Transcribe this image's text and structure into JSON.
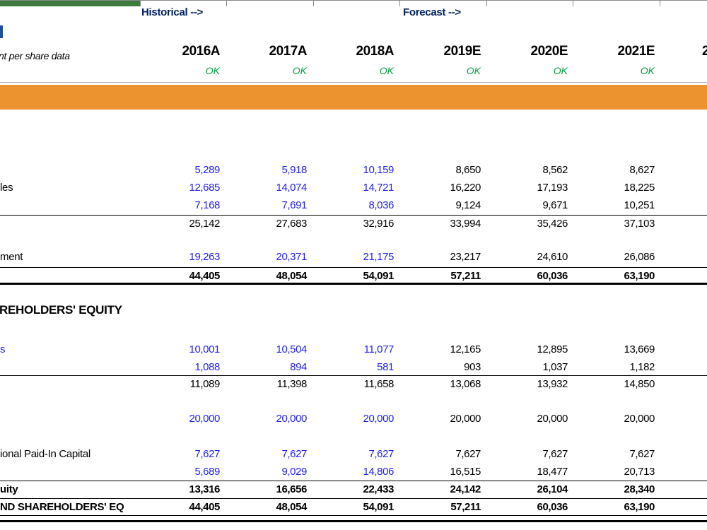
{
  "header": {
    "historical_label": "Historical -->",
    "forecast_label": "Forecast -->",
    "subtitle_fragment": "nt per share data",
    "years": [
      "2016A",
      "2017A",
      "2018A",
      "2019E",
      "2020E",
      "2021E"
    ],
    "next_year_fragment": "2",
    "check_label": "OK"
  },
  "section_header_fragment": "REHOLDERS' EQUITY",
  "table": {
    "rows": [
      {
        "label": "",
        "label_style": "normal",
        "value_style": "input",
        "values": [
          "5,289",
          "5,918",
          "10,159",
          "8,650",
          "8,562",
          "8,627"
        ]
      },
      {
        "label": "les",
        "label_style": "normal",
        "value_style": "input",
        "values": [
          "12,685",
          "14,074",
          "14,721",
          "16,220",
          "17,193",
          "18,225"
        ]
      },
      {
        "label": "",
        "label_style": "normal",
        "value_style": "input",
        "values": [
          "7,168",
          "7,691",
          "8,036",
          "9,124",
          "9,671",
          "10,251"
        ]
      },
      {
        "label": "",
        "label_style": "normal",
        "value_style": "calc",
        "values": [
          "25,142",
          "27,683",
          "32,916",
          "33,994",
          "35,426",
          "37,103"
        ]
      },
      {
        "label": "ment",
        "label_style": "normal",
        "value_style": "input",
        "values": [
          "19,263",
          "20,371",
          "21,175",
          "23,217",
          "24,610",
          "26,086"
        ]
      },
      {
        "label": "",
        "label_style": "normal",
        "value_style": "total",
        "values": [
          "44,405",
          "48,054",
          "54,091",
          "57,211",
          "60,036",
          "63,190"
        ]
      },
      {
        "label": "s",
        "label_style": "blue",
        "value_style": "input",
        "values": [
          "10,001",
          "10,504",
          "11,077",
          "12,165",
          "12,895",
          "13,669"
        ]
      },
      {
        "label": "",
        "label_style": "normal",
        "value_style": "input",
        "values": [
          "1,088",
          "894",
          "581",
          "903",
          "1,037",
          "1,182"
        ]
      },
      {
        "label": "",
        "label_style": "normal",
        "value_style": "calc",
        "values": [
          "11,089",
          "11,398",
          "11,658",
          "13,068",
          "13,932",
          "14,850"
        ]
      },
      {
        "label": "",
        "label_style": "normal",
        "value_style": "input",
        "values": [
          "20,000",
          "20,000",
          "20,000",
          "20,000",
          "20,000",
          "20,000"
        ]
      },
      {
        "label": "ional Paid-In Capital",
        "label_style": "normal",
        "value_style": "input",
        "values": [
          "7,627",
          "7,627",
          "7,627",
          "7,627",
          "7,627",
          "7,627"
        ]
      },
      {
        "label": "",
        "label_style": "normal",
        "value_style": "input",
        "values": [
          "5,689",
          "9,029",
          "14,806",
          "16,515",
          "18,477",
          "20,713"
        ]
      },
      {
        "label": "uity",
        "label_style": "bold",
        "value_style": "total",
        "values": [
          "13,316",
          "16,656",
          "22,433",
          "24,142",
          "26,104",
          "28,340"
        ]
      },
      {
        "label": "ND SHAREHOLDERS' EQ",
        "label_style": "bold",
        "value_style": "total",
        "values": [
          "44,405",
          "48,054",
          "54,091",
          "57,211",
          "60,036",
          "63,190"
        ]
      }
    ]
  },
  "colors": {
    "input_blue": "#2222EE",
    "check_green": "#00A041",
    "period_navy": "#002060",
    "orange_band": "#EC9330",
    "green_bar": "#3E7B3E",
    "title_blue": "#1F4E9F"
  }
}
